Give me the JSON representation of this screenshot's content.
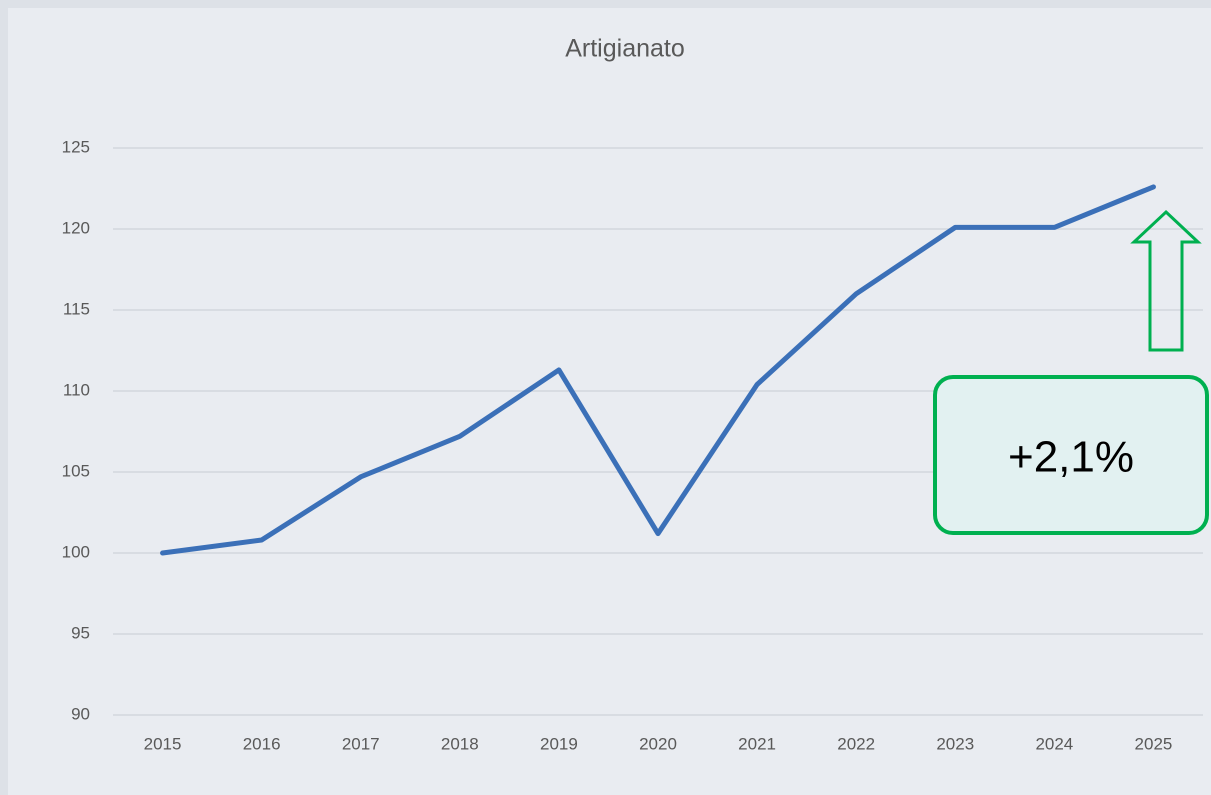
{
  "chart_data": {
    "type": "line",
    "title": "Artigianato",
    "categories": [
      "2015",
      "2016",
      "2017",
      "2018",
      "2019",
      "2020",
      "2021",
      "2022",
      "2023",
      "2024",
      "2025"
    ],
    "series": [
      {
        "name": "Artigianato",
        "color": "#3b70b8",
        "values": [
          100,
          100.8,
          104.7,
          107.2,
          111.3,
          101.2,
          110.4,
          116.0,
          120.1,
          120.1,
          122.6
        ]
      }
    ],
    "ylim": [
      90,
      125
    ],
    "yticks": [
      90,
      95,
      100,
      105,
      110,
      115,
      120,
      125
    ],
    "grid": true,
    "annotation": "+2,1%"
  }
}
